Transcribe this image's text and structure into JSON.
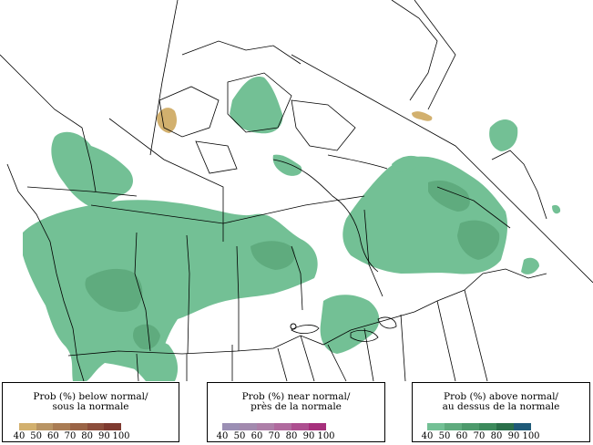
{
  "legend": [
    {
      "title_line1": "Prob (%) below normal/",
      "title_line2": "sous la normale",
      "colors": [
        "#d2b06e",
        "#b89464",
        "#a97c54",
        "#9a6446",
        "#8c4e3c",
        "#7e3a30"
      ],
      "ticks": [
        "40",
        "50",
        "60",
        "70",
        "80",
        "90",
        "100"
      ]
    },
    {
      "title_line1": "Prob (%) near normal/",
      "title_line2": "près de la normale",
      "colors": [
        "#9b8fb4",
        "#a28aae",
        "#ad7fa8",
        "#b06a9e",
        "#ad4f90",
        "#a6307c"
      ],
      "ticks": [
        "40",
        "50",
        "60",
        "70",
        "80",
        "90",
        "100"
      ]
    },
    {
      "title_line1": "Prob (%) above normal/",
      "title_line2": "au dessus de la normale",
      "colors": [
        "#73c095",
        "#5fab7e",
        "#4d9a6c",
        "#3c8a5c",
        "#2a6f4a",
        "#1f5a78"
      ],
      "ticks": [
        "40",
        "50",
        "60",
        "70",
        "80",
        "90",
        "100"
      ]
    }
  ],
  "map": {
    "above_color": "#73c095",
    "above_color_dark": "#5fab7e",
    "below_color": "#d2b06e",
    "line_color": "#000000"
  }
}
